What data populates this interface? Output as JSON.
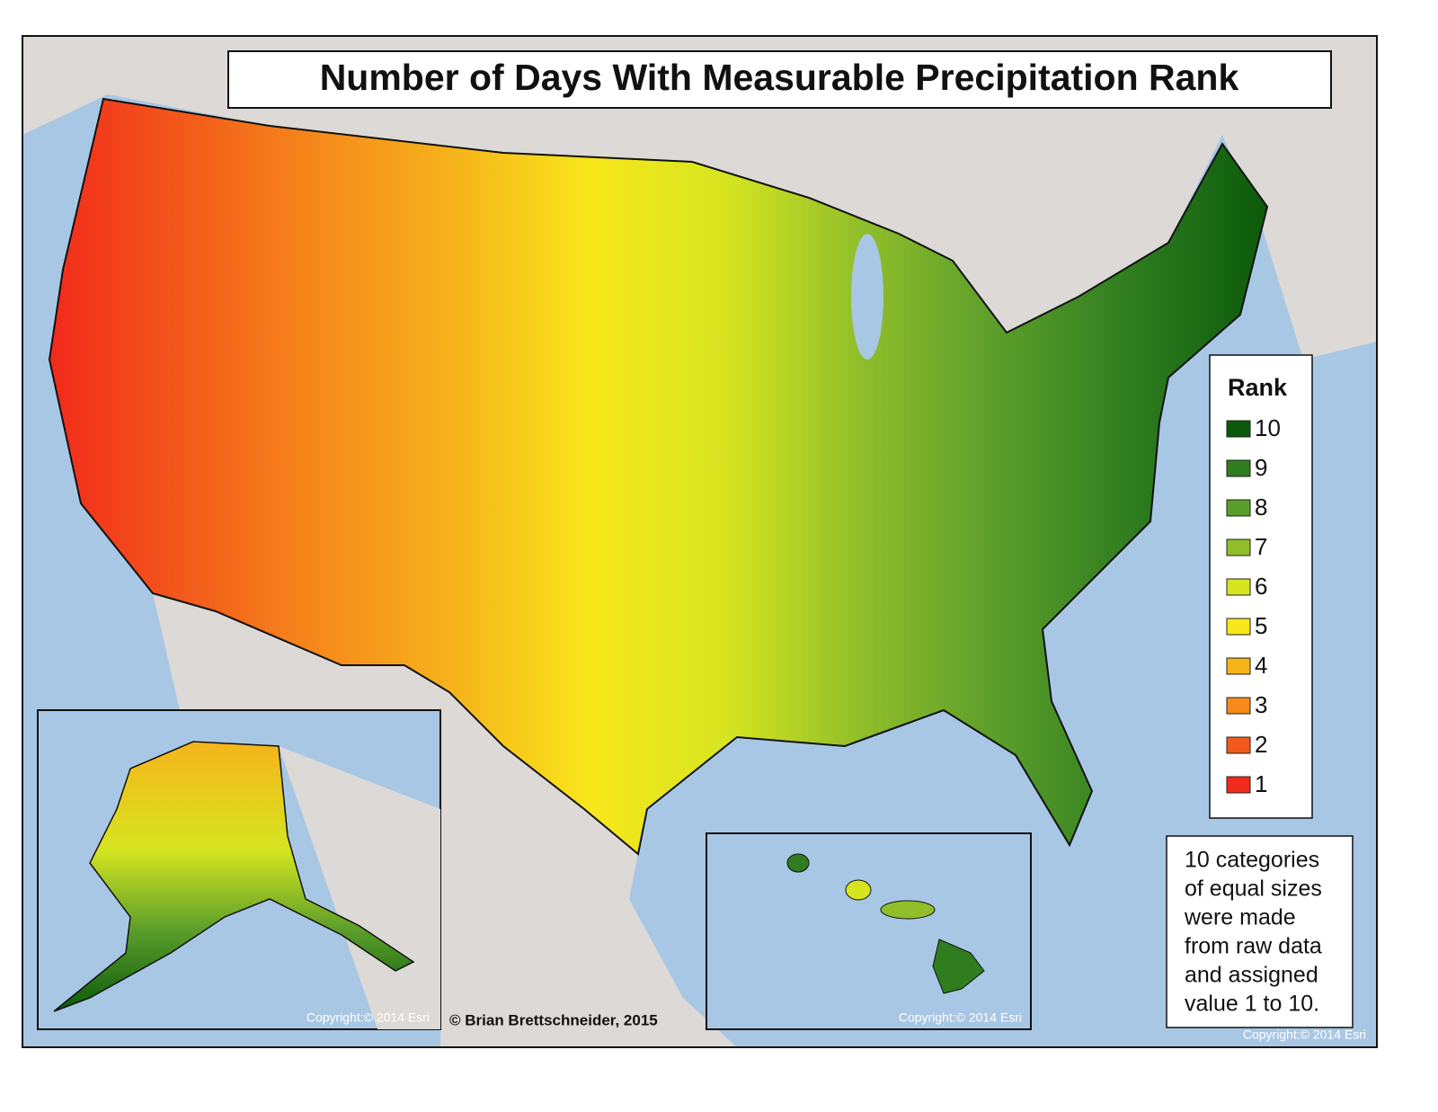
{
  "title": "Number of Days With Measurable Precipitation Rank",
  "legend": {
    "title": "Rank",
    "items": [
      {
        "label": "10",
        "color": "#0b5a0b"
      },
      {
        "label": "9",
        "color": "#2f7d1f"
      },
      {
        "label": "8",
        "color": "#5b9e2b"
      },
      {
        "label": "7",
        "color": "#90be2a"
      },
      {
        "label": "6",
        "color": "#d6e520"
      },
      {
        "label": "5",
        "color": "#f8e71b"
      },
      {
        "label": "4",
        "color": "#f6b41b"
      },
      {
        "label": "3",
        "color": "#f68a1b"
      },
      {
        "label": "2",
        "color": "#f25a1b"
      },
      {
        "label": "1",
        "color": "#f22a1b"
      }
    ]
  },
  "note": [
    "10 categories",
    "of equal sizes",
    "were made",
    "from raw data",
    "and assigned",
    "value 1 to 10."
  ],
  "credit": "© Brian Brettschneider, 2015",
  "copyrights": [
    "Copyright:© 2014 Esri",
    "Copyright:© 2014 Esri",
    "Copyright:© 2014 Esri"
  ]
}
